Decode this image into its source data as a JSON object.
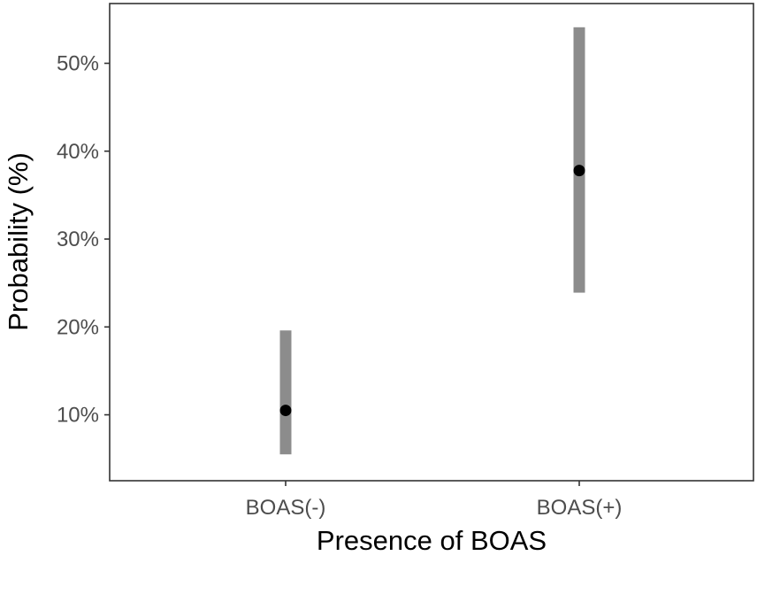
{
  "chart_data": {
    "type": "scatter",
    "title": "",
    "xlabel": "Presence of BOAS",
    "ylabel": "Probability (%)",
    "categories": [
      "BOAS(-)",
      "BOAS(+)"
    ],
    "series": [
      {
        "values": [
          10.5,
          37.8
        ],
        "lower": [
          5.5,
          23.9
        ],
        "upper": [
          19.6,
          54.1
        ]
      }
    ],
    "yticks": [
      10,
      20,
      30,
      40,
      50
    ],
    "ytick_labels": [
      "10%",
      "20%",
      "30%",
      "40%",
      "50%"
    ],
    "ylim": [
      2.5,
      56.8
    ],
    "grid": false,
    "legend": "none",
    "colors": {
      "point": "#000000",
      "interval": "#8c8c8c",
      "axis": "#333333",
      "tick_text": "#4d4d4d"
    }
  }
}
